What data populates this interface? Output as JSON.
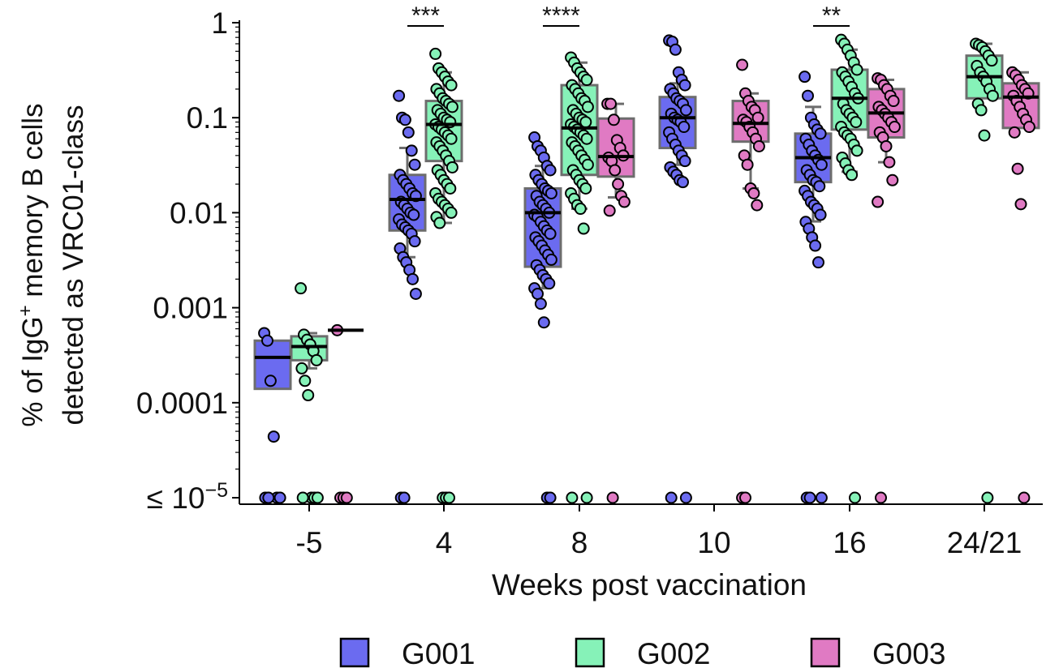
{
  "chart_data": {
    "type": "box",
    "ylabel_line1": "% of IgG",
    "ylabel_sup": "+",
    "ylabel_line1_rest": " memory B cells",
    "ylabel_line2": "detected as VRC01-class",
    "xlabel": "Weeks post vaccination",
    "y_scale": "log",
    "ylim": [
      9e-06,
      1
    ],
    "y_ticks": [
      {
        "value": 1,
        "label": "1"
      },
      {
        "value": 0.1,
        "label": "0.1"
      },
      {
        "value": 0.01,
        "label": "0.01"
      },
      {
        "value": 0.001,
        "label": "0.001"
      },
      {
        "value": 0.0001,
        "label": "0.0001"
      },
      {
        "value": 1e-05,
        "label": "≤ 10",
        "sup": "−5"
      }
    ],
    "categories": [
      "-5",
      "4",
      "8",
      "10",
      "16",
      "24/21"
    ],
    "legend": [
      {
        "name": "G001",
        "color": "#6b6bf0"
      },
      {
        "name": "G002",
        "color": "#86f2b8"
      },
      {
        "name": "G003",
        "color": "#e07ac3"
      }
    ],
    "significance": [
      {
        "category": "4",
        "label": "***"
      },
      {
        "category": "8",
        "label": "****"
      },
      {
        "category": "16",
        "label": "**"
      }
    ],
    "boxes": [
      {
        "category": "-5",
        "group": "G001",
        "q1": 0.00014,
        "median": 0.0003,
        "q3": 0.00045,
        "whisker_low": null,
        "whisker_high": null,
        "points": [
          0.00054,
          0.00045,
          0.00017,
          4.4e-05,
          1e-05,
          1e-05,
          1e-05,
          1e-05
        ]
      },
      {
        "category": "-5",
        "group": "G002",
        "q1": 0.00028,
        "median": 0.00039,
        "q3": 0.0005,
        "whisker_low": 0.00023,
        "whisker_high": 0.00054,
        "points": [
          0.0016,
          0.00052,
          0.00046,
          0.00041,
          0.00035,
          0.00028,
          0.00023,
          0.00017,
          0.00012,
          1e-05,
          1e-05,
          1e-05,
          1e-05
        ]
      },
      {
        "category": "-5",
        "group": "G003",
        "q1": null,
        "median": 0.00058,
        "q3": null,
        "whisker_low": null,
        "whisker_high": null,
        "points": [
          0.00058,
          1e-05,
          1e-05,
          1e-05
        ]
      },
      {
        "category": "4",
        "group": "G001",
        "q1": 0.0065,
        "median": 0.0138,
        "q3": 0.025,
        "whisker_low": 0.0034,
        "whisker_high": 0.048,
        "points": [
          0.17,
          0.1,
          0.095,
          0.07,
          0.045,
          0.032,
          0.025,
          0.022,
          0.02,
          0.018,
          0.016,
          0.015,
          0.013,
          0.012,
          0.011,
          0.01,
          0.0095,
          0.0085,
          0.0075,
          0.007,
          0.0065,
          0.006,
          0.005,
          0.0042,
          0.0034,
          0.003,
          0.0025,
          0.002,
          0.0014,
          1e-05,
          1e-05
        ]
      },
      {
        "category": "4",
        "group": "G002",
        "q1": 0.035,
        "median": 0.085,
        "q3": 0.15,
        "whisker_low": 0.0078,
        "whisker_high": 0.3,
        "points": [
          0.47,
          0.33,
          0.3,
          0.27,
          0.24,
          0.22,
          0.2,
          0.18,
          0.16,
          0.15,
          0.14,
          0.13,
          0.12,
          0.11,
          0.1,
          0.095,
          0.09,
          0.085,
          0.08,
          0.075,
          0.07,
          0.065,
          0.06,
          0.055,
          0.05,
          0.045,
          0.04,
          0.035,
          0.03,
          0.028,
          0.025,
          0.022,
          0.02,
          0.018,
          0.016,
          0.014,
          0.013,
          0.012,
          0.011,
          0.01,
          0.009,
          0.0078,
          1e-05,
          1e-05,
          1e-05
        ]
      },
      {
        "category": "8",
        "group": "G001",
        "q1": 0.0027,
        "median": 0.01,
        "q3": 0.018,
        "whisker_low": 0.0016,
        "whisker_high": 0.031,
        "points": [
          0.062,
          0.05,
          0.045,
          0.038,
          0.031,
          0.028,
          0.025,
          0.022,
          0.02,
          0.018,
          0.017,
          0.016,
          0.015,
          0.013,
          0.012,
          0.011,
          0.01,
          0.0095,
          0.009,
          0.008,
          0.0072,
          0.0065,
          0.006,
          0.0055,
          0.005,
          0.0045,
          0.004,
          0.0036,
          0.0032,
          0.0028,
          0.0025,
          0.0022,
          0.002,
          0.0018,
          0.0016,
          0.0014,
          0.0011,
          0.0007,
          1e-05,
          1e-05
        ]
      },
      {
        "category": "8",
        "group": "G002",
        "q1": 0.025,
        "median": 0.078,
        "q3": 0.22,
        "whisker_low": 0.011,
        "whisker_high": 0.38,
        "points": [
          0.43,
          0.38,
          0.33,
          0.3,
          0.27,
          0.25,
          0.22,
          0.2,
          0.18,
          0.16,
          0.15,
          0.13,
          0.12,
          0.11,
          0.1,
          0.095,
          0.09,
          0.085,
          0.08,
          0.075,
          0.07,
          0.065,
          0.06,
          0.055,
          0.05,
          0.045,
          0.04,
          0.036,
          0.032,
          0.028,
          0.025,
          0.022,
          0.02,
          0.018,
          0.016,
          0.014,
          0.012,
          0.011,
          0.0068,
          1e-05,
          1e-05
        ]
      },
      {
        "category": "8",
        "group": "G003",
        "q1": 0.024,
        "median": 0.039,
        "q3": 0.098,
        "whisker_low": 0.0145,
        "whisker_high": 0.14,
        "points": [
          0.14,
          0.14,
          0.095,
          0.058,
          0.048,
          0.04,
          0.038,
          0.035,
          0.028,
          0.02,
          0.015,
          0.013,
          0.0105,
          1e-05
        ]
      },
      {
        "category": "10",
        "group": "G001",
        "q1": 0.048,
        "median": 0.1,
        "q3": 0.165,
        "whisker_low": 0.032,
        "whisker_high": 0.23,
        "points": [
          0.65,
          0.63,
          0.52,
          0.3,
          0.25,
          0.22,
          0.2,
          0.18,
          0.16,
          0.15,
          0.14,
          0.12,
          0.11,
          0.1,
          0.095,
          0.09,
          0.08,
          0.07,
          0.06,
          0.052,
          0.045,
          0.04,
          0.035,
          0.03,
          0.027,
          0.025,
          0.022,
          0.021,
          1e-05,
          1e-05
        ]
      },
      {
        "category": "10",
        "group": "G003",
        "q1": 0.056,
        "median": 0.087,
        "q3": 0.15,
        "whisker_low": 0.018,
        "whisker_high": 0.18,
        "points": [
          0.36,
          0.18,
          0.15,
          0.13,
          0.12,
          0.1,
          0.095,
          0.09,
          0.08,
          0.07,
          0.06,
          0.05,
          0.04,
          0.032,
          0.018,
          0.016,
          0.012,
          1e-05,
          1e-05
        ]
      },
      {
        "category": "16",
        "group": "G001",
        "q1": 0.021,
        "median": 0.038,
        "q3": 0.068,
        "whisker_low": 0.0081,
        "whisker_high": 0.13,
        "points": [
          0.27,
          0.17,
          0.1,
          0.085,
          0.075,
          0.068,
          0.06,
          0.052,
          0.045,
          0.04,
          0.036,
          0.032,
          0.028,
          0.025,
          0.022,
          0.021,
          0.019,
          0.017,
          0.015,
          0.013,
          0.012,
          0.011,
          0.0095,
          0.008,
          0.0068,
          0.0055,
          0.0045,
          0.003,
          1e-05,
          1e-05,
          1e-05
        ]
      },
      {
        "category": "16",
        "group": "G002",
        "q1": 0.075,
        "median": 0.16,
        "q3": 0.32,
        "whisker_low": 0.027,
        "whisker_high": 0.52,
        "points": [
          0.66,
          0.6,
          0.52,
          0.45,
          0.38,
          0.32,
          0.3,
          0.27,
          0.24,
          0.21,
          0.18,
          0.16,
          0.14,
          0.12,
          0.11,
          0.1,
          0.09,
          0.08,
          0.07,
          0.065,
          0.06,
          0.052,
          0.045,
          0.038,
          0.033,
          0.028,
          0.025,
          1e-05
        ]
      },
      {
        "category": "16",
        "group": "G003",
        "q1": 0.062,
        "median": 0.112,
        "q3": 0.2,
        "whisker_low": 0.034,
        "whisker_high": 0.25,
        "points": [
          0.26,
          0.25,
          0.22,
          0.2,
          0.17,
          0.15,
          0.13,
          0.12,
          0.11,
          0.1,
          0.09,
          0.08,
          0.07,
          0.062,
          0.05,
          0.034,
          0.022,
          0.013,
          1e-05
        ]
      },
      {
        "category": "24/21",
        "group": "G002",
        "q1": 0.16,
        "median": 0.27,
        "q3": 0.45,
        "whisker_low": null,
        "whisker_high": 0.6,
        "points": [
          0.6,
          0.58,
          0.55,
          0.5,
          0.45,
          0.4,
          0.35,
          0.3,
          0.27,
          0.24,
          0.2,
          0.17,
          0.14,
          0.12,
          0.065,
          1e-05
        ]
      },
      {
        "category": "24/21",
        "group": "G003",
        "q1": 0.078,
        "median": 0.165,
        "q3": 0.23,
        "whisker_low": null,
        "whisker_high": 0.3,
        "points": [
          0.3,
          0.28,
          0.25,
          0.22,
          0.2,
          0.18,
          0.17,
          0.15,
          0.13,
          0.11,
          0.095,
          0.08,
          0.07,
          0.029,
          0.0123,
          1e-05
        ]
      }
    ]
  }
}
